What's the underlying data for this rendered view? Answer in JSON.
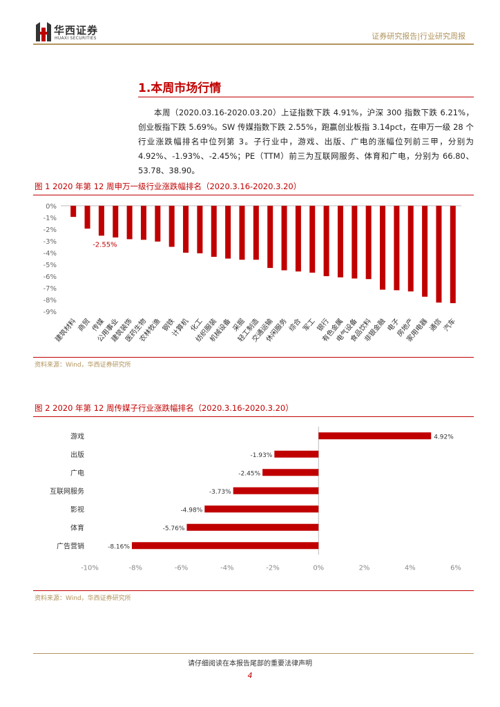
{
  "header": {
    "logo_name": "华西证券",
    "logo_en": "HUAXI SECURITIES",
    "right_text": "证券研究报告|行业研究周报"
  },
  "section": {
    "title": "1.本周市场行情",
    "paragraph": "本周（2020.03.16-2020.03.20）上证指数下跌 4.91%，沪深 300 指数下跌 6.21%，创业板指下跌 5.69%。SW 传媒指数下跌 2.55%，跑赢创业板指 3.14pct，在申万一级 28 个行业涨跌幅排名中位列第 3。子行业中，游戏、出版、广电的涨幅位列前三甲，分别为 4.92%、-1.93%、-2.45%；PE（TTM）前三为互联网服务、体育和广电，分别为 66.80、53.78、38.90。"
  },
  "figure1": {
    "title": "图 1 2020 年第 12 周申万一级行业涨跌幅排名（2020.3.16-2020.3.20）",
    "source": "资料来源：Wind，华西证券研究所"
  },
  "figure2": {
    "title": "图 2 2020 年第 12 周传媒子行业涨跌幅排名（2020.3.16-2020.3.20）",
    "source": "资料来源：Wind，华西证券研究所"
  },
  "footer": {
    "notice": "请仔细阅读在本报告尾部的重要法律声明",
    "page": "4"
  },
  "colors": {
    "accent": "#c00000",
    "gold": "#b0935c"
  },
  "chart_data": [
    {
      "type": "bar",
      "categories": [
        "建筑材料",
        "商贸",
        "传媒",
        "公用事业",
        "建筑装饰",
        "医药生物",
        "农林牧渔",
        "钢铁",
        "计算机",
        "化工",
        "纺织服装",
        "机械设备",
        "采掘",
        "轻工制造",
        "交通运输",
        "休闲服务",
        "综合",
        "军工",
        "银行",
        "有色金属",
        "电气设备",
        "食品饮料",
        "非银金融",
        "电子",
        "房地产",
        "家用电器",
        "通信",
        "汽车"
      ],
      "values": [
        -0.95,
        -1.95,
        -2.55,
        -2.7,
        -2.85,
        -2.9,
        -3.05,
        -3.5,
        -4.0,
        -4.05,
        -4.35,
        -4.5,
        -4.6,
        -4.6,
        -5.3,
        -5.5,
        -5.6,
        -5.7,
        -6.0,
        -6.1,
        -6.2,
        -6.25,
        -7.15,
        -7.2,
        -7.3,
        -7.75,
        -8.25,
        -8.3
      ],
      "highlight": {
        "category": "传媒",
        "label": "-2.55%"
      },
      "y_ticks": [
        "0%",
        "-1%",
        "-2%",
        "-3%",
        "-4%",
        "-5%",
        "-6%",
        "-7%",
        "-8%",
        "-9%"
      ],
      "ylim": [
        -9,
        0
      ]
    },
    {
      "type": "bar",
      "orientation": "horizontal",
      "categories": [
        "游戏",
        "出版",
        "广电",
        "互联网服务",
        "影视",
        "体育",
        "广告营销"
      ],
      "values": [
        4.92,
        -1.93,
        -2.45,
        -3.73,
        -4.98,
        -5.76,
        -8.16
      ],
      "value_labels": [
        "4.92%",
        "-1.93%",
        "-2.45%",
        "-3.73%",
        "-4.98%",
        "-5.76%",
        "-8.16%"
      ],
      "x_ticks": [
        "-10%",
        "-8%",
        "-6%",
        "-4%",
        "-2%",
        "0%",
        "2%",
        "4%",
        "6%"
      ],
      "xlim": [
        -10,
        6
      ]
    }
  ]
}
